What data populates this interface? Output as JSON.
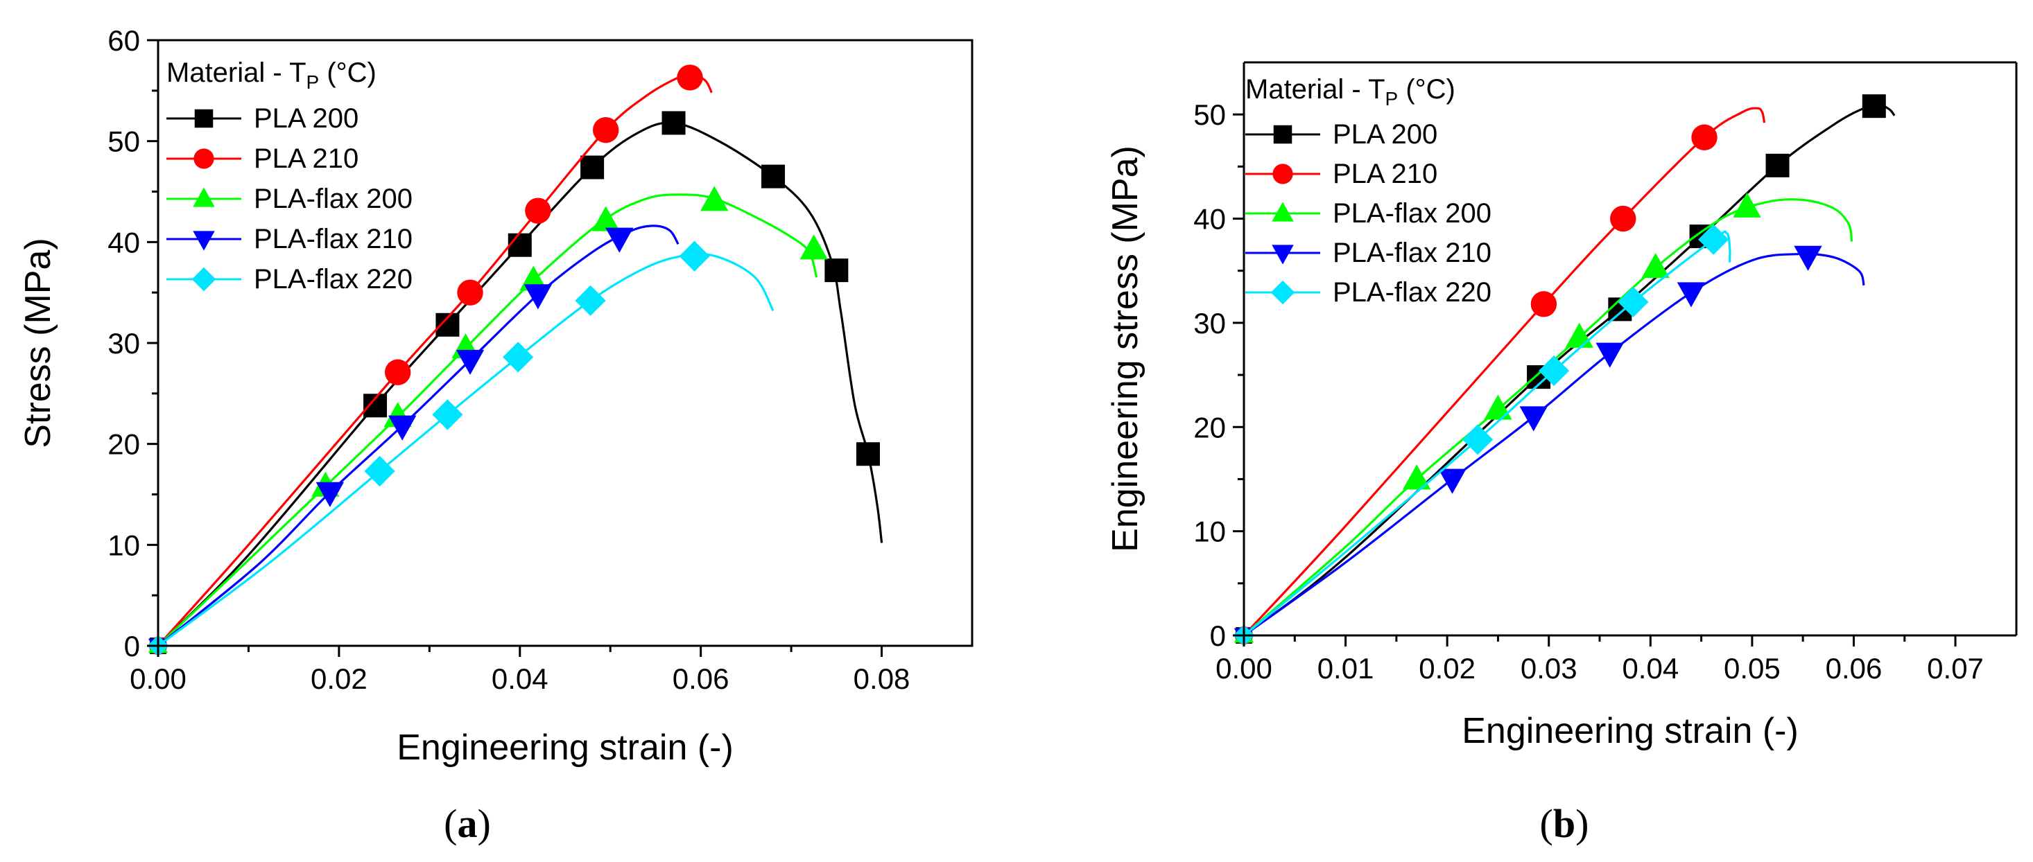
{
  "chart_data": [
    {
      "type": "line",
      "caption_letter": "a",
      "xlabel": "Engineering strain (-)",
      "ylabel": "Stress (MPa)",
      "xlim": [
        0,
        0.09
      ],
      "ylim": [
        0,
        60
      ],
      "xticks": [
        0.0,
        0.02,
        0.04,
        0.06,
        0.08
      ],
      "xtick_labels": [
        "0.00",
        "0.02",
        "0.04",
        "0.06",
        "0.08"
      ],
      "yticks": [
        0,
        10,
        20,
        30,
        40,
        50,
        60
      ],
      "ytick_labels": [
        "0",
        "10",
        "20",
        "30",
        "40",
        "50",
        "60"
      ],
      "legend_title": "Material - T",
      "legend_title_sub": "P",
      "legend_title_suffix": " (°C)",
      "legend_position": "top-left",
      "series": [
        {
          "name": "PLA 200",
          "color": "#000000",
          "marker": "square",
          "curve": [
            [
              0.0,
              0
            ],
            [
              0.01,
              9
            ],
            [
              0.024,
              23.8
            ],
            [
              0.032,
              31.8
            ],
            [
              0.04,
              39.7
            ],
            [
              0.048,
              47.4
            ],
            [
              0.053,
              50.8
            ],
            [
              0.057,
              51.8
            ],
            [
              0.062,
              50
            ],
            [
              0.068,
              46.5
            ],
            [
              0.072,
              43
            ],
            [
              0.0745,
              38
            ],
            [
              0.0755,
              33
            ],
            [
              0.077,
              24
            ],
            [
              0.0785,
              19
            ],
            [
              0.0795,
              14
            ],
            [
              0.08,
              10.2
            ]
          ],
          "markers": [
            [
              0.024,
              23.8
            ],
            [
              0.032,
              31.8
            ],
            [
              0.04,
              39.7
            ],
            [
              0.048,
              47.4
            ],
            [
              0.057,
              51.8
            ],
            [
              0.068,
              46.5
            ],
            [
              0.075,
              37.2
            ],
            [
              0.0785,
              19
            ]
          ]
        },
        {
          "name": "PLA 210",
          "color": "#ff0000",
          "marker": "circle",
          "curve": [
            [
              0.0,
              0
            ],
            [
              0.01,
              10
            ],
            [
              0.0265,
              27.1
            ],
            [
              0.0345,
              35
            ],
            [
              0.042,
              43.1
            ],
            [
              0.0495,
              51.1
            ],
            [
              0.054,
              54.5
            ],
            [
              0.0575,
              56.3
            ],
            [
              0.059,
              56.6
            ],
            [
              0.0605,
              56
            ],
            [
              0.0612,
              54.8
            ]
          ],
          "markers": [
            [
              0.0265,
              27.1
            ],
            [
              0.0345,
              35
            ],
            [
              0.042,
              43.1
            ],
            [
              0.0495,
              51.1
            ],
            [
              0.0588,
              56.3
            ]
          ]
        },
        {
          "name": "PLA-flax 200",
          "color": "#00ff00",
          "marker": "triangle-up",
          "curve": [
            [
              0.0,
              0
            ],
            [
              0.01,
              8.5
            ],
            [
              0.0185,
              15.8
            ],
            [
              0.0265,
              22.7
            ],
            [
              0.034,
              29.5
            ],
            [
              0.0415,
              36.2
            ],
            [
              0.049,
              42
            ],
            [
              0.054,
              44.3
            ],
            [
              0.058,
              44.7
            ],
            [
              0.0615,
              44.3
            ],
            [
              0.066,
              42.5
            ],
            [
              0.07,
              40.5
            ],
            [
              0.072,
              39
            ],
            [
              0.0728,
              36.5
            ]
          ],
          "markers": [
            [
              0.0185,
              15.8
            ],
            [
              0.0265,
              22.7
            ],
            [
              0.034,
              29.5
            ],
            [
              0.0415,
              36.2
            ],
            [
              0.0495,
              42.1
            ],
            [
              0.0615,
              44.1
            ],
            [
              0.0725,
              39.3
            ]
          ]
        },
        {
          "name": "PLA-flax 210",
          "color": "#0000ff",
          "marker": "triangle-down",
          "curve": [
            [
              0.0,
              0
            ],
            [
              0.011,
              8
            ],
            [
              0.019,
              15.2
            ],
            [
              0.027,
              21.8
            ],
            [
              0.0345,
              28.3
            ],
            [
              0.042,
              34.8
            ],
            [
              0.048,
              39
            ],
            [
              0.052,
              41
            ],
            [
              0.0545,
              41.6
            ],
            [
              0.0565,
              41.2
            ],
            [
              0.0575,
              39.8
            ]
          ],
          "markers": [
            [
              0.019,
              15.2
            ],
            [
              0.027,
              21.8
            ],
            [
              0.0345,
              28.3
            ],
            [
              0.042,
              34.8
            ],
            [
              0.051,
              40.4
            ]
          ]
        },
        {
          "name": "PLA-flax 220",
          "color": "#00e5ff",
          "marker": "diamond",
          "curve": [
            [
              0.0,
              0
            ],
            [
              0.012,
              8
            ],
            [
              0.0245,
              17.3
            ],
            [
              0.032,
              22.9
            ],
            [
              0.0398,
              28.6
            ],
            [
              0.0478,
              34.2
            ],
            [
              0.054,
              37.5
            ],
            [
              0.0585,
              38.7
            ],
            [
              0.062,
              38.5
            ],
            [
              0.066,
              36.5
            ],
            [
              0.068,
              33.2
            ]
          ],
          "markers": [
            [
              0.0245,
              17.3
            ],
            [
              0.032,
              22.9
            ],
            [
              0.0398,
              28.6
            ],
            [
              0.0478,
              34.2
            ],
            [
              0.0593,
              38.6
            ]
          ]
        }
      ]
    },
    {
      "type": "line",
      "caption_letter": "b",
      "xlabel": "Engineering strain (-)",
      "ylabel": "Engineering stress  (MPa)",
      "xlim": [
        0,
        0.076
      ],
      "ylim": [
        0,
        55
      ],
      "xticks": [
        0.0,
        0.01,
        0.02,
        0.03,
        0.04,
        0.05,
        0.06,
        0.07
      ],
      "xtick_labels": [
        "0.00",
        "0.01",
        "0.02",
        "0.03",
        "0.04",
        "0.05",
        "0.06",
        "0.07"
      ],
      "yticks": [
        0,
        10,
        20,
        30,
        40,
        50
      ],
      "ytick_labels": [
        "0",
        "10",
        "20",
        "30",
        "40",
        "50"
      ],
      "legend_title": "Material - T",
      "legend_title_sub": "P",
      "legend_title_suffix": " (°C)",
      "legend_position": "top-left",
      "series": [
        {
          "name": "PLA 200",
          "color": "#000000",
          "marker": "square",
          "curve": [
            [
              0.0,
              0
            ],
            [
              0.01,
              7.5
            ],
            [
              0.029,
              24.8
            ],
            [
              0.037,
              31.3
            ],
            [
              0.045,
              38.3
            ],
            [
              0.0525,
              45.1
            ],
            [
              0.058,
              49
            ],
            [
              0.061,
              50.6
            ],
            [
              0.0625,
              50.9
            ],
            [
              0.0635,
              50.5
            ],
            [
              0.064,
              49.9
            ]
          ],
          "markers": [
            [
              0.029,
              24.8
            ],
            [
              0.037,
              31.3
            ],
            [
              0.045,
              38.3
            ],
            [
              0.0525,
              45.1
            ],
            [
              0.062,
              50.8
            ]
          ]
        },
        {
          "name": "PLA 210",
          "color": "#ff0000",
          "marker": "circle",
          "curve": [
            [
              0.0,
              0
            ],
            [
              0.01,
              10.5
            ],
            [
              0.0295,
              31.8
            ],
            [
              0.0373,
              40
            ],
            [
              0.0453,
              47.8
            ],
            [
              0.049,
              50.2
            ],
            [
              0.0505,
              50.6
            ],
            [
              0.051,
              50.2
            ],
            [
              0.0512,
              49.2
            ]
          ],
          "markers": [
            [
              0.0295,
              31.8
            ],
            [
              0.0373,
              40
            ],
            [
              0.0453,
              47.8
            ]
          ]
        },
        {
          "name": "PLA-flax 200",
          "color": "#00ff00",
          "marker": "triangle-up",
          "curve": [
            [
              0.0,
              0
            ],
            [
              0.01,
              8.5
            ],
            [
              0.017,
              15
            ],
            [
              0.025,
              21.7
            ],
            [
              0.033,
              28.6
            ],
            [
              0.0405,
              35.3
            ],
            [
              0.047,
              40
            ],
            [
              0.0515,
              41.6
            ],
            [
              0.055,
              41.8
            ],
            [
              0.058,
              41
            ],
            [
              0.0595,
              39.5
            ],
            [
              0.0598,
              37.8
            ]
          ],
          "markers": [
            [
              0.017,
              15
            ],
            [
              0.025,
              21.7
            ],
            [
              0.033,
              28.6
            ],
            [
              0.0405,
              35.3
            ],
            [
              0.0495,
              41.1
            ]
          ]
        },
        {
          "name": "PLA-flax 210",
          "color": "#0000ff",
          "marker": "triangle-down",
          "curve": [
            [
              0.0,
              0
            ],
            [
              0.01,
              7
            ],
            [
              0.0205,
              15
            ],
            [
              0.0285,
              21
            ],
            [
              0.036,
              27.1
            ],
            [
              0.044,
              32.9
            ],
            [
              0.05,
              36
            ],
            [
              0.0545,
              36.6
            ],
            [
              0.058,
              36.3
            ],
            [
              0.0605,
              35
            ],
            [
              0.061,
              33.6
            ]
          ],
          "markers": [
            [
              0.0205,
              15
            ],
            [
              0.0285,
              21
            ],
            [
              0.036,
              27.1
            ],
            [
              0.044,
              32.9
            ],
            [
              0.0555,
              36.4
            ]
          ]
        },
        {
          "name": "PLA-flax 220",
          "color": "#00e5ff",
          "marker": "diamond",
          "curve": [
            [
              0.0,
              0
            ],
            [
              0.01,
              8
            ],
            [
              0.023,
              18.8
            ],
            [
              0.0305,
              25.4
            ],
            [
              0.0383,
              32
            ],
            [
              0.0462,
              38
            ],
            [
              0.0475,
              38.6
            ],
            [
              0.0478,
              37.2
            ],
            [
              0.0478,
              35.8
            ]
          ],
          "markers": [
            [
              0.023,
              18.8
            ],
            [
              0.0305,
              25.4
            ],
            [
              0.0383,
              32
            ],
            [
              0.0462,
              38
            ]
          ]
        }
      ]
    }
  ]
}
